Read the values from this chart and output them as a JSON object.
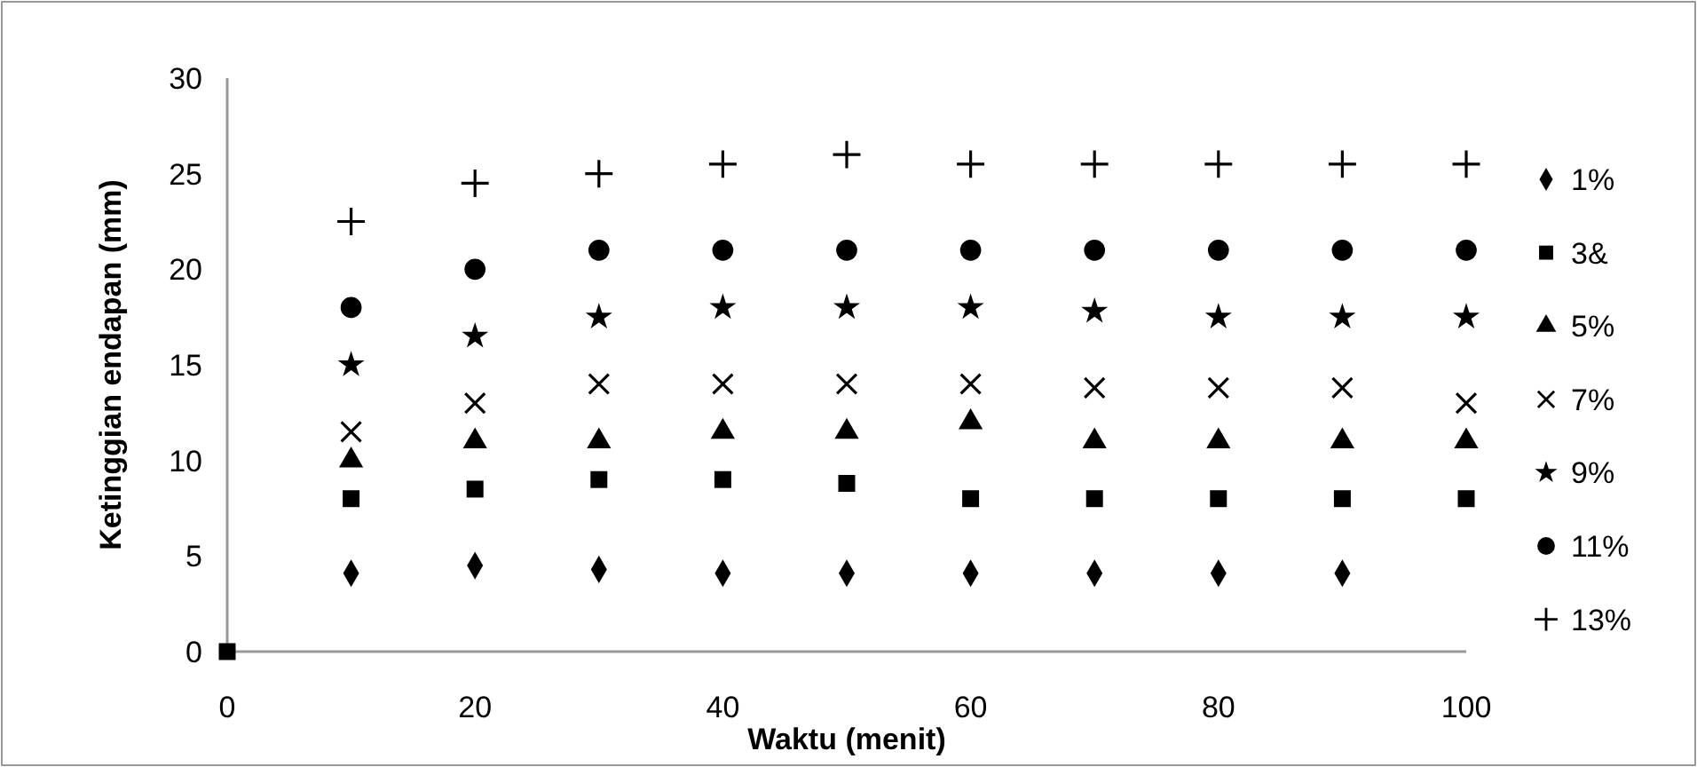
{
  "chart_data": {
    "type": "scatter",
    "xlabel": "Waktu (menit)",
    "ylabel": "Ketinggian endapan (mm)",
    "x": [
      10,
      20,
      30,
      40,
      50,
      60,
      70,
      80,
      90,
      100
    ],
    "xlim": [
      0,
      100
    ],
    "xticks": [
      0,
      20,
      40,
      60,
      80,
      100
    ],
    "ylim": [
      0,
      30
    ],
    "yticks": [
      0,
      5,
      10,
      15,
      20,
      25,
      30
    ],
    "grid": false,
    "legend": "right",
    "series": [
      {
        "name": "1%",
        "color": "#000000",
        "marker": "diamond",
        "values": [
          4.1,
          4.5,
          4.3,
          4.1,
          4.1,
          4.1,
          4.1,
          4.1,
          4.1,
          null
        ]
      },
      {
        "name": "3&",
        "color": "#000000",
        "marker": "square",
        "x": [
          0,
          10,
          20,
          30,
          40,
          50,
          60,
          70,
          80,
          90,
          100
        ],
        "values": [
          0,
          8,
          8.5,
          9,
          9,
          8.8,
          8,
          8,
          8,
          8,
          8
        ]
      },
      {
        "name": "5%",
        "color": "#000000",
        "marker": "triangle",
        "values": [
          10,
          11,
          11,
          11.5,
          11.5,
          12,
          11,
          11,
          11,
          11
        ]
      },
      {
        "name": "7%",
        "color": "#000000",
        "marker": "cross",
        "values": [
          11.5,
          13,
          14,
          14,
          14,
          14,
          13.8,
          13.8,
          13.8,
          13
        ]
      },
      {
        "name": "9%",
        "color": "#000000",
        "marker": "star",
        "values": [
          15,
          16.5,
          17.5,
          18,
          18,
          18,
          17.8,
          17.5,
          17.5,
          17.5
        ]
      },
      {
        "name": "11%",
        "color": "#000000",
        "marker": "circle",
        "values": [
          18,
          20,
          21,
          21,
          21,
          21,
          21,
          21,
          21,
          21
        ]
      },
      {
        "name": "13%",
        "color": "#000000",
        "marker": "plus",
        "values": [
          22.5,
          24.5,
          25,
          25.5,
          26,
          25.5,
          25.5,
          25.5,
          25.5,
          25.5
        ]
      }
    ]
  }
}
